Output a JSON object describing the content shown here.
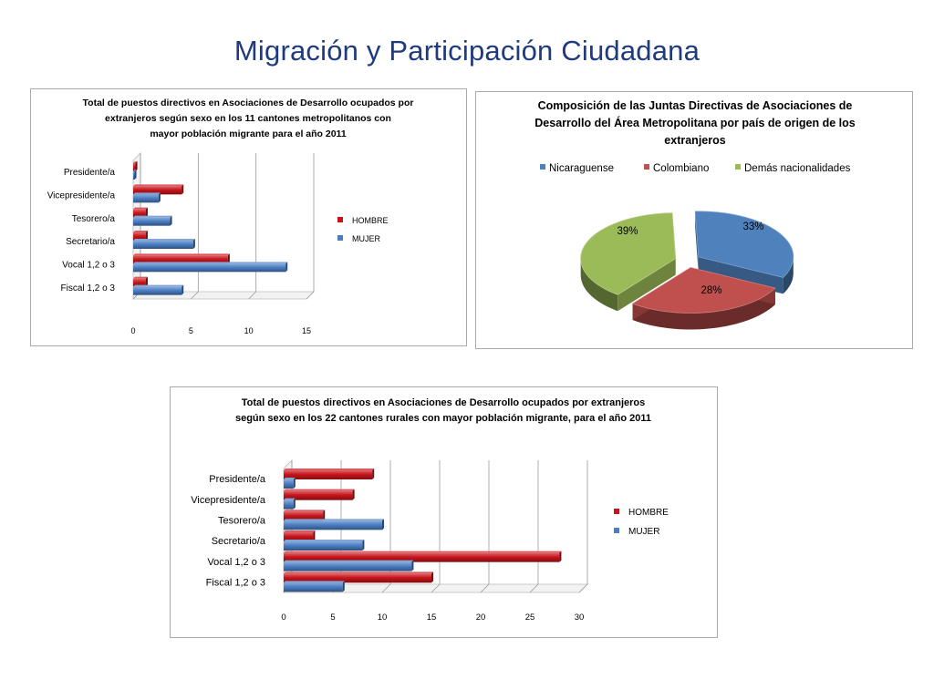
{
  "slide": {
    "title": "Migración y Participación Ciudadana"
  },
  "colors": {
    "hombre": "#c8141b",
    "mujer": "#4a7ec4",
    "nicaraguense": "#4f81bd",
    "colombiano": "#c0504d",
    "demas": "#9bbb59"
  },
  "chart_data": [
    {
      "type": "bar",
      "orientation": "horizontal",
      "title_lines": [
        "Total de puestos directivos en Asociaciones de Desarrollo ocupados por",
        "extranjeros según sexo en los 11 cantones metropolitanos con",
        "mayor población migrante para el año 2011"
      ],
      "categories": [
        "Presidente/a",
        "Vicepresidente/a",
        "Tesorero/a",
        "Secretario/a",
        "Vocal 1,2 o 3",
        "Fiscal 1,2 o 3"
      ],
      "series": [
        {
          "name": "HOMBRE",
          "values": [
            0.2,
            4.2,
            1.1,
            1.1,
            8.2,
            1.1
          ]
        },
        {
          "name": "MUJER",
          "values": [
            0.1,
            2.2,
            3.2,
            5.2,
            13.2,
            4.2
          ]
        }
      ],
      "xticks": [
        "0",
        "5",
        "10",
        "15"
      ],
      "xlim": [
        0,
        15
      ],
      "grid": true,
      "legend_position": "right"
    },
    {
      "type": "pie",
      "title_lines": [
        "Composición de las Juntas Directivas de Asociaciones de",
        "Desarrollo del Área Metropolitana por país de origen de los",
        "extranjeros"
      ],
      "labels": [
        "Nicaraguense",
        "Colombiano",
        "Demás nacionalidades"
      ],
      "values": [
        33,
        28,
        39
      ],
      "value_labels": [
        "33%",
        "28%",
        "39%"
      ],
      "legend_position": "top",
      "exploded": true
    },
    {
      "type": "bar",
      "orientation": "horizontal",
      "title_lines": [
        "Total de puestos directivos en Asociaciones de Desarrollo ocupados por extranjeros",
        "según sexo en los 22 cantones rurales  con mayor población migrante, para el año 2011"
      ],
      "categories": [
        "Presidente/a",
        "Vicepresidente/a",
        "Tesorero/a",
        "Secretario/a",
        "Vocal 1,2 o 3",
        "Fiscal 1,2 o 3"
      ],
      "series": [
        {
          "name": "HOMBRE",
          "values": [
            9,
            7,
            4,
            3,
            28,
            15
          ]
        },
        {
          "name": "MUJER",
          "values": [
            1,
            1,
            10,
            8,
            13,
            6
          ]
        }
      ],
      "xticks": [
        "0",
        "5",
        "10",
        "15",
        "20",
        "25",
        "30"
      ],
      "xlim": [
        0,
        30
      ],
      "grid": true,
      "legend_position": "right"
    }
  ]
}
